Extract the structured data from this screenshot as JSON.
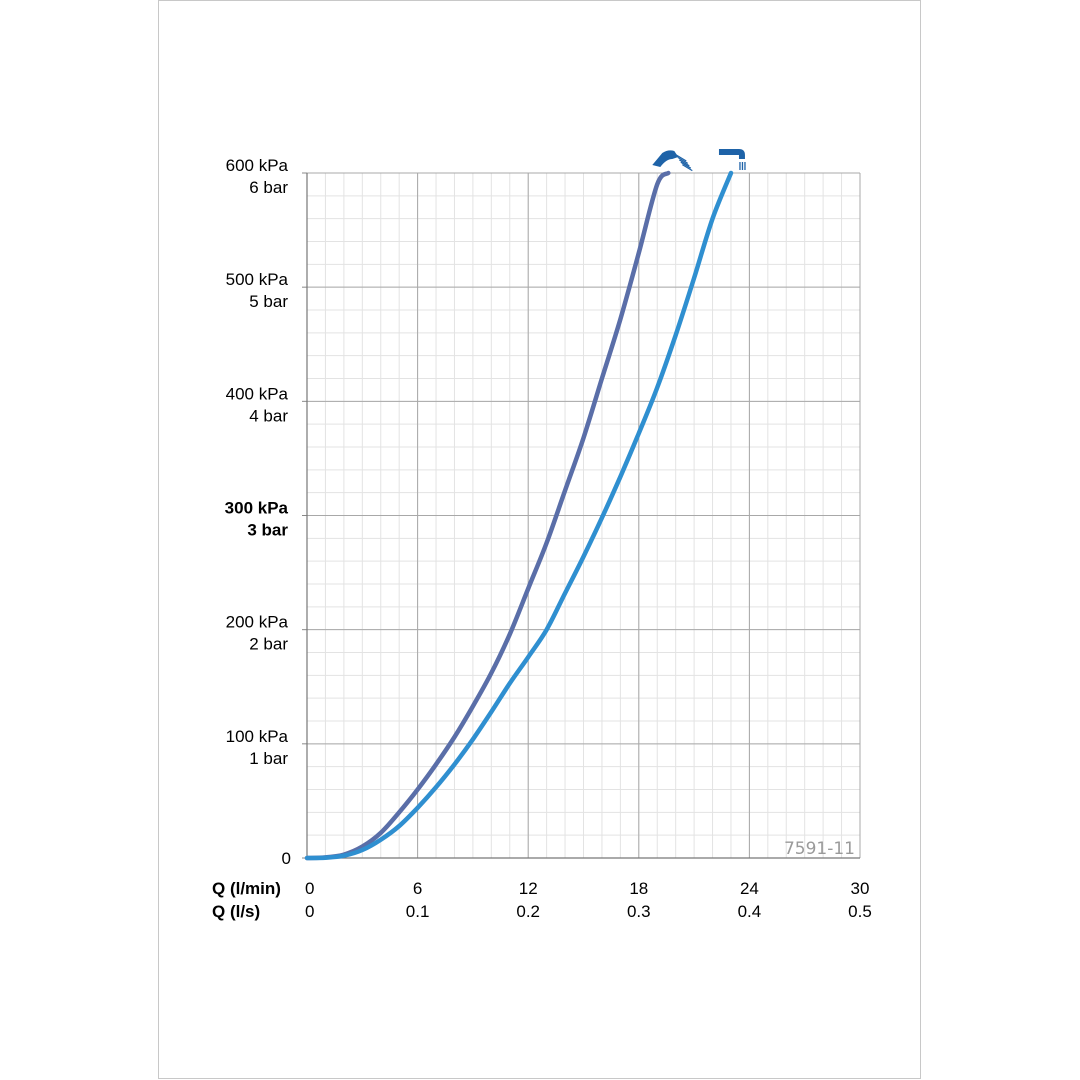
{
  "chart_data": {
    "type": "line",
    "figure_code": "7591-11",
    "x_axis": {
      "lpm_label": "Q (l/min)",
      "lps_label": "Q (l/s)",
      "range": [
        0,
        30
      ],
      "ticks_lpm": [
        "0",
        "6",
        "12",
        "18",
        "24",
        "30"
      ],
      "ticks_lps": [
        "0",
        "0.1",
        "0.2",
        "0.3",
        "0.4",
        "0.5"
      ]
    },
    "y_axis": {
      "range": [
        0,
        600
      ],
      "unit": "kPa",
      "ticks": [
        {
          "value": 0,
          "kpa": "0",
          "bar": ""
        },
        {
          "value": 100,
          "kpa": "100 kPa",
          "bar": "1 bar"
        },
        {
          "value": 200,
          "kpa": "200 kPa",
          "bar": "2 bar"
        },
        {
          "value": 300,
          "kpa": "300 kPa",
          "bar": "3 bar",
          "bold": true
        },
        {
          "value": 400,
          "kpa": "400 kPa",
          "bar": "4 bar"
        },
        {
          "value": 500,
          "kpa": "500 kPa",
          "bar": "5 bar"
        },
        {
          "value": 600,
          "kpa": "600 kPa",
          "bar": "6 bar"
        }
      ]
    },
    "grid": true,
    "series": [
      {
        "icon": "shower-head-icon",
        "color": "#5a6ea8",
        "points": [
          [
            0,
            0
          ],
          [
            1,
            0.5
          ],
          [
            2,
            3
          ],
          [
            3,
            10
          ],
          [
            4,
            22
          ],
          [
            5,
            40
          ],
          [
            6,
            60
          ],
          [
            7,
            82
          ],
          [
            8,
            106
          ],
          [
            9,
            133
          ],
          [
            10,
            162
          ],
          [
            11,
            196
          ],
          [
            12,
            236
          ],
          [
            13,
            276
          ],
          [
            14,
            322
          ],
          [
            15,
            368
          ],
          [
            16,
            420
          ],
          [
            17,
            472
          ],
          [
            18,
            530
          ],
          [
            19,
            590
          ],
          [
            19.6,
            600
          ]
        ]
      },
      {
        "icon": "tub-spout-icon",
        "color": "#2f8fd0",
        "points": [
          [
            0,
            0
          ],
          [
            1,
            0.3
          ],
          [
            2,
            2
          ],
          [
            3,
            7
          ],
          [
            4,
            16
          ],
          [
            5,
            28
          ],
          [
            6,
            44
          ],
          [
            7,
            62
          ],
          [
            8,
            82
          ],
          [
            9,
            104
          ],
          [
            10,
            128
          ],
          [
            11,
            153
          ],
          [
            12,
            176
          ],
          [
            13,
            200
          ],
          [
            14,
            232
          ],
          [
            15,
            264
          ],
          [
            16,
            298
          ],
          [
            17,
            334
          ],
          [
            18,
            372
          ],
          [
            19,
            412
          ],
          [
            20,
            458
          ],
          [
            21,
            508
          ],
          [
            22,
            560
          ],
          [
            23,
            600
          ]
        ]
      }
    ]
  }
}
